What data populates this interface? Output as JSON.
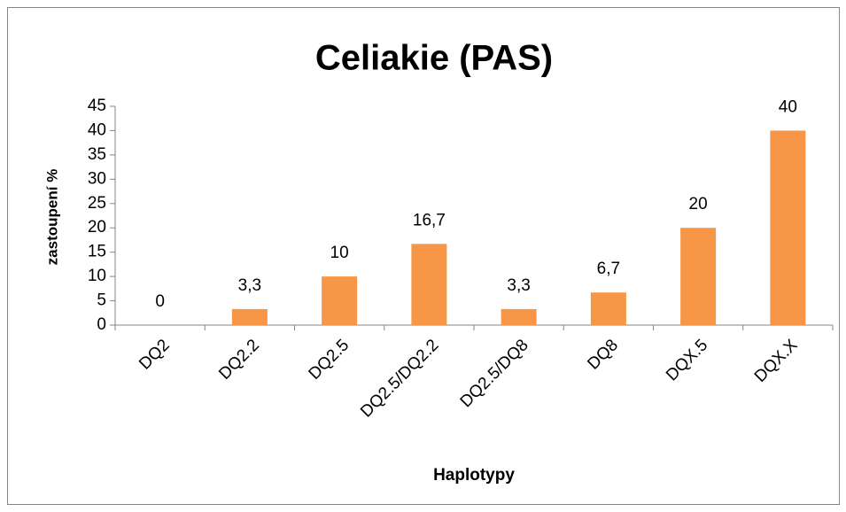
{
  "chart_data": {
    "type": "bar",
    "title": "Celiakie (PAS)",
    "x_label": "Haplotypy",
    "y_label": "zastoupení %",
    "categories": [
      "DQ2",
      "DQ2.2",
      "DQ2.5",
      "DQ2.5/DQ2.2",
      "DQ2.5/DQ8",
      "DQ8",
      "DQX.5",
      "DQX.X"
    ],
    "values": [
      0,
      3.3,
      10,
      16.7,
      3.3,
      6.7,
      20,
      40
    ],
    "value_labels": [
      "0",
      "3,3",
      "10",
      "16,7",
      "3,3",
      "6,7",
      "20",
      "40"
    ],
    "color": "#f79646",
    "ylim": [
      0,
      45
    ],
    "yticks": [
      0,
      5,
      10,
      15,
      20,
      25,
      30,
      35,
      40,
      45
    ],
    "grid": false
  }
}
